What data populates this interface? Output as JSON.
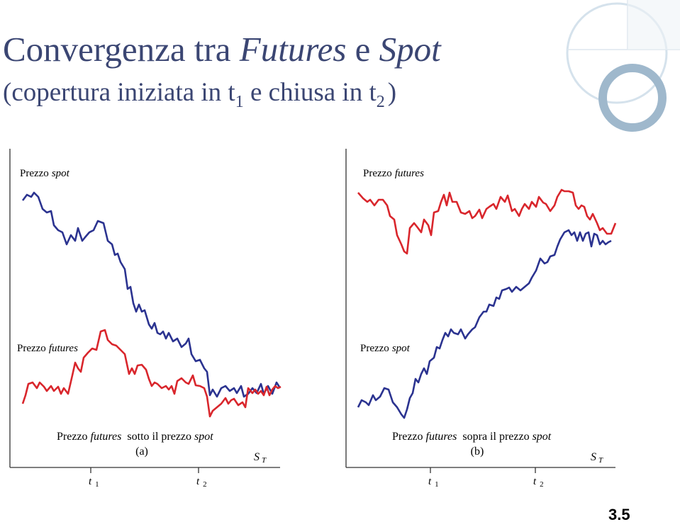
{
  "title": {
    "part1": "Convergenza tra",
    "part2": "Futures",
    "part3": "e",
    "part4": "Spot"
  },
  "subtitle": {
    "part1": "(copertura iniziata in t",
    "sub1": "1",
    "part2": "e chiusa in t",
    "sub2": "2",
    "part3": ")"
  },
  "panels": [
    {
      "upper_label": {
        "text": "Prezzo",
        "em": "spot"
      },
      "lower_label": {
        "text": "Prezzo",
        "em": "futures"
      },
      "caption": {
        "part1": "Prezzo",
        "em1": "futures",
        "part2": "sotto il prezzo",
        "em2": "spot"
      },
      "tag": "(a)",
      "end_label": {
        "main": "S",
        "sub": "T"
      },
      "ticks": [
        {
          "main": "t",
          "sub": "1"
        },
        {
          "main": "t",
          "sub": "2"
        }
      ]
    },
    {
      "upper_label": {
        "text": "Prezzo",
        "em": "futures"
      },
      "lower_label": {
        "text": "Prezzo",
        "em": "spot"
      },
      "caption": {
        "part1": "Prezzo",
        "em1": "futures",
        "part2": "sopra il prezzo",
        "em2": "spot"
      },
      "tag": "(b)",
      "end_label": {
        "main": "S",
        "sub": "T"
      },
      "ticks": [
        {
          "main": "t",
          "sub": "1"
        },
        {
          "main": "t",
          "sub": "2"
        }
      ]
    }
  ],
  "page_number": "3.5"
}
